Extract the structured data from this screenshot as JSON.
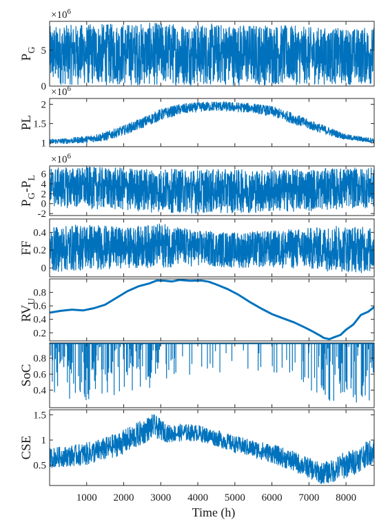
{
  "chart_data": {
    "type": "line",
    "xlabel": "Time (h)",
    "xlim": [
      0,
      8760
    ],
    "xticks": [
      1000,
      2000,
      3000,
      4000,
      5000,
      6000,
      7000,
      8000
    ],
    "series_color": "#0072BD",
    "panels": [
      {
        "id": "pg",
        "ylabel": "P",
        "ylabel_sub": "G",
        "exponent": "×10",
        "exponent_power": "6",
        "ylim": [
          0,
          9
        ],
        "yticks": [
          0,
          5
        ],
        "ytick_labels": [
          "0",
          "5"
        ],
        "style": "noise",
        "line_width": 1.2,
        "envelope": {
          "x": [
            0,
            1000,
            2000,
            3000,
            4000,
            5000,
            6000,
            7000,
            8000,
            8760
          ],
          "low": [
            0.2,
            0.1,
            0.1,
            0.1,
            0.1,
            0.1,
            0.1,
            0.2,
            0.2,
            0.2
          ],
          "high": [
            8.3,
            8.6,
            8.7,
            8.8,
            8.7,
            8.6,
            8.6,
            8.2,
            8.0,
            8.2
          ]
        }
      },
      {
        "id": "pl",
        "ylabel": "PL",
        "ylabel_sub": "",
        "exponent": "×10",
        "exponent_power": "6",
        "ylim": [
          0.9,
          2.15
        ],
        "yticks": [
          1,
          1.5,
          2
        ],
        "ytick_labels": [
          "1",
          "1.5",
          "2"
        ],
        "style": "band",
        "line_width": 1.2,
        "envelope": {
          "x": [
            0,
            500,
            1000,
            1500,
            2000,
            2500,
            3000,
            3500,
            4000,
            4500,
            5000,
            5500,
            6000,
            6500,
            7000,
            7500,
            8000,
            8500,
            8760
          ],
          "low": [
            0.97,
            0.98,
            1.0,
            1.05,
            1.2,
            1.38,
            1.58,
            1.73,
            1.8,
            1.83,
            1.8,
            1.78,
            1.68,
            1.52,
            1.35,
            1.2,
            1.08,
            1.02,
            1.0
          ],
          "high": [
            1.1,
            1.12,
            1.18,
            1.28,
            1.45,
            1.65,
            1.88,
            2.0,
            2.05,
            2.08,
            2.05,
            2.02,
            1.95,
            1.8,
            1.6,
            1.42,
            1.22,
            1.15,
            1.12
          ]
        }
      },
      {
        "id": "pgpl",
        "ylabel": "P",
        "ylabel_sub": "G",
        "ylabel_mid": "-P",
        "ylabel_sub2": "L",
        "exponent": "×10",
        "exponent_power": "6",
        "ylim": [
          -2.4,
          7.6
        ],
        "yticks": [
          -2,
          0,
          2,
          4,
          6
        ],
        "ytick_labels": [
          "-2",
          "0",
          "2",
          "4",
          "6"
        ],
        "style": "noise",
        "line_width": 1.2,
        "envelope": {
          "x": [
            0,
            1000,
            2000,
            3000,
            4000,
            5000,
            6000,
            7000,
            8000,
            8760
          ],
          "low": [
            -0.8,
            -1.0,
            -1.5,
            -1.8,
            -2.0,
            -1.9,
            -1.8,
            -1.5,
            -1.0,
            -0.9
          ],
          "high": [
            7.2,
            7.4,
            7.2,
            7.0,
            6.9,
            6.9,
            6.9,
            7.0,
            7.2,
            7.2
          ]
        }
      },
      {
        "id": "ff",
        "ylabel": "FF",
        "ylabel_sub": "",
        "ylim": [
          -0.1,
          0.55
        ],
        "yticks": [
          0,
          0.2,
          0.4
        ],
        "ytick_labels": [
          "0",
          "0.2",
          "0.4"
        ],
        "style": "noise",
        "line_width": 1.2,
        "envelope": {
          "x": [
            0,
            1000,
            2000,
            3000,
            4000,
            5000,
            6000,
            7000,
            8000,
            8760
          ],
          "low": [
            -0.05,
            -0.03,
            0.0,
            0.0,
            0.02,
            0.0,
            0.0,
            -0.02,
            -0.05,
            -0.06
          ],
          "high": [
            0.45,
            0.5,
            0.45,
            0.5,
            0.42,
            0.4,
            0.42,
            0.45,
            0.48,
            0.45
          ]
        }
      },
      {
        "id": "rvu",
        "ylabel": "RV",
        "ylabel_sub": "U",
        "ylim": [
          0.08,
          1.0
        ],
        "yticks": [
          0.2,
          0.4,
          0.6,
          0.8
        ],
        "ytick_labels": [
          "0.2",
          "0.4",
          "0.6",
          "0.8"
        ],
        "style": "line",
        "line_width": 3,
        "values": {
          "x": [
            0,
            300,
            600,
            900,
            1200,
            1500,
            1800,
            2100,
            2400,
            2700,
            2900,
            3100,
            3300,
            3500,
            3800,
            4100,
            4300,
            4500,
            4800,
            5100,
            5400,
            5700,
            6000,
            6300,
            6600,
            6900,
            7100,
            7300,
            7400,
            7550,
            7700,
            7850,
            8000,
            8200,
            8400,
            8600,
            8760
          ],
          "y": [
            0.5,
            0.52,
            0.55,
            0.53,
            0.57,
            0.62,
            0.72,
            0.82,
            0.89,
            0.94,
            0.98,
            0.97,
            0.96,
            0.98,
            0.97,
            0.98,
            0.96,
            0.92,
            0.85,
            0.76,
            0.66,
            0.56,
            0.48,
            0.42,
            0.36,
            0.28,
            0.22,
            0.16,
            0.12,
            0.11,
            0.14,
            0.17,
            0.24,
            0.33,
            0.47,
            0.51,
            0.58
          ]
        }
      },
      {
        "id": "soc",
        "ylabel": "SoC",
        "ylabel_sub": "",
        "ylim": [
          0.18,
          0.99
        ],
        "yticks": [
          0.4,
          0.6,
          0.8
        ],
        "ytick_labels": [
          "0.4",
          "0.6",
          "0.8"
        ],
        "style": "spikes",
        "line_width": 1.2,
        "baseline": 0.98,
        "spike_depth": {
          "x": [
            0,
            500,
            1000,
            1500,
            2000,
            2500,
            3000,
            3500,
            4000,
            4500,
            5000,
            5500,
            6000,
            6500,
            7000,
            7500,
            8000,
            8500,
            8760
          ],
          "min": [
            0.25,
            0.22,
            0.25,
            0.3,
            0.35,
            0.4,
            0.45,
            0.55,
            0.55,
            0.6,
            0.65,
            0.65,
            0.6,
            0.5,
            0.4,
            0.25,
            0.22,
            0.25,
            0.3
          ],
          "density": [
            0.9,
            0.9,
            0.9,
            0.8,
            0.7,
            0.6,
            0.45,
            0.35,
            0.3,
            0.25,
            0.2,
            0.2,
            0.25,
            0.35,
            0.5,
            0.85,
            0.95,
            0.9,
            0.85
          ]
        }
      },
      {
        "id": "cse",
        "ylabel": "CSE",
        "ylabel_sub": "",
        "ylim": [
          0.1,
          1.6
        ],
        "yticks": [
          0.5,
          1,
          1.5
        ],
        "ytick_labels": [
          "0.5",
          "1",
          "1.5"
        ],
        "style": "band",
        "line_width": 1.2,
        "envelope": {
          "x": [
            0,
            500,
            1000,
            1500,
            2000,
            2500,
            2800,
            3200,
            3600,
            4000,
            4500,
            5000,
            5500,
            6000,
            6500,
            7000,
            7300,
            7600,
            7900,
            8200,
            8500,
            8760
          ],
          "low": [
            0.45,
            0.48,
            0.5,
            0.6,
            0.72,
            0.9,
            1.05,
            0.95,
            0.98,
            0.98,
            0.88,
            0.75,
            0.65,
            0.55,
            0.4,
            0.25,
            0.13,
            0.15,
            0.22,
            0.3,
            0.45,
            0.55
          ],
          "high": [
            0.85,
            0.88,
            0.95,
            1.05,
            1.2,
            1.4,
            1.52,
            1.3,
            1.32,
            1.3,
            1.2,
            1.08,
            1.0,
            0.92,
            0.8,
            0.65,
            0.55,
            0.6,
            0.75,
            0.82,
            0.95,
            1.05
          ]
        }
      }
    ]
  }
}
